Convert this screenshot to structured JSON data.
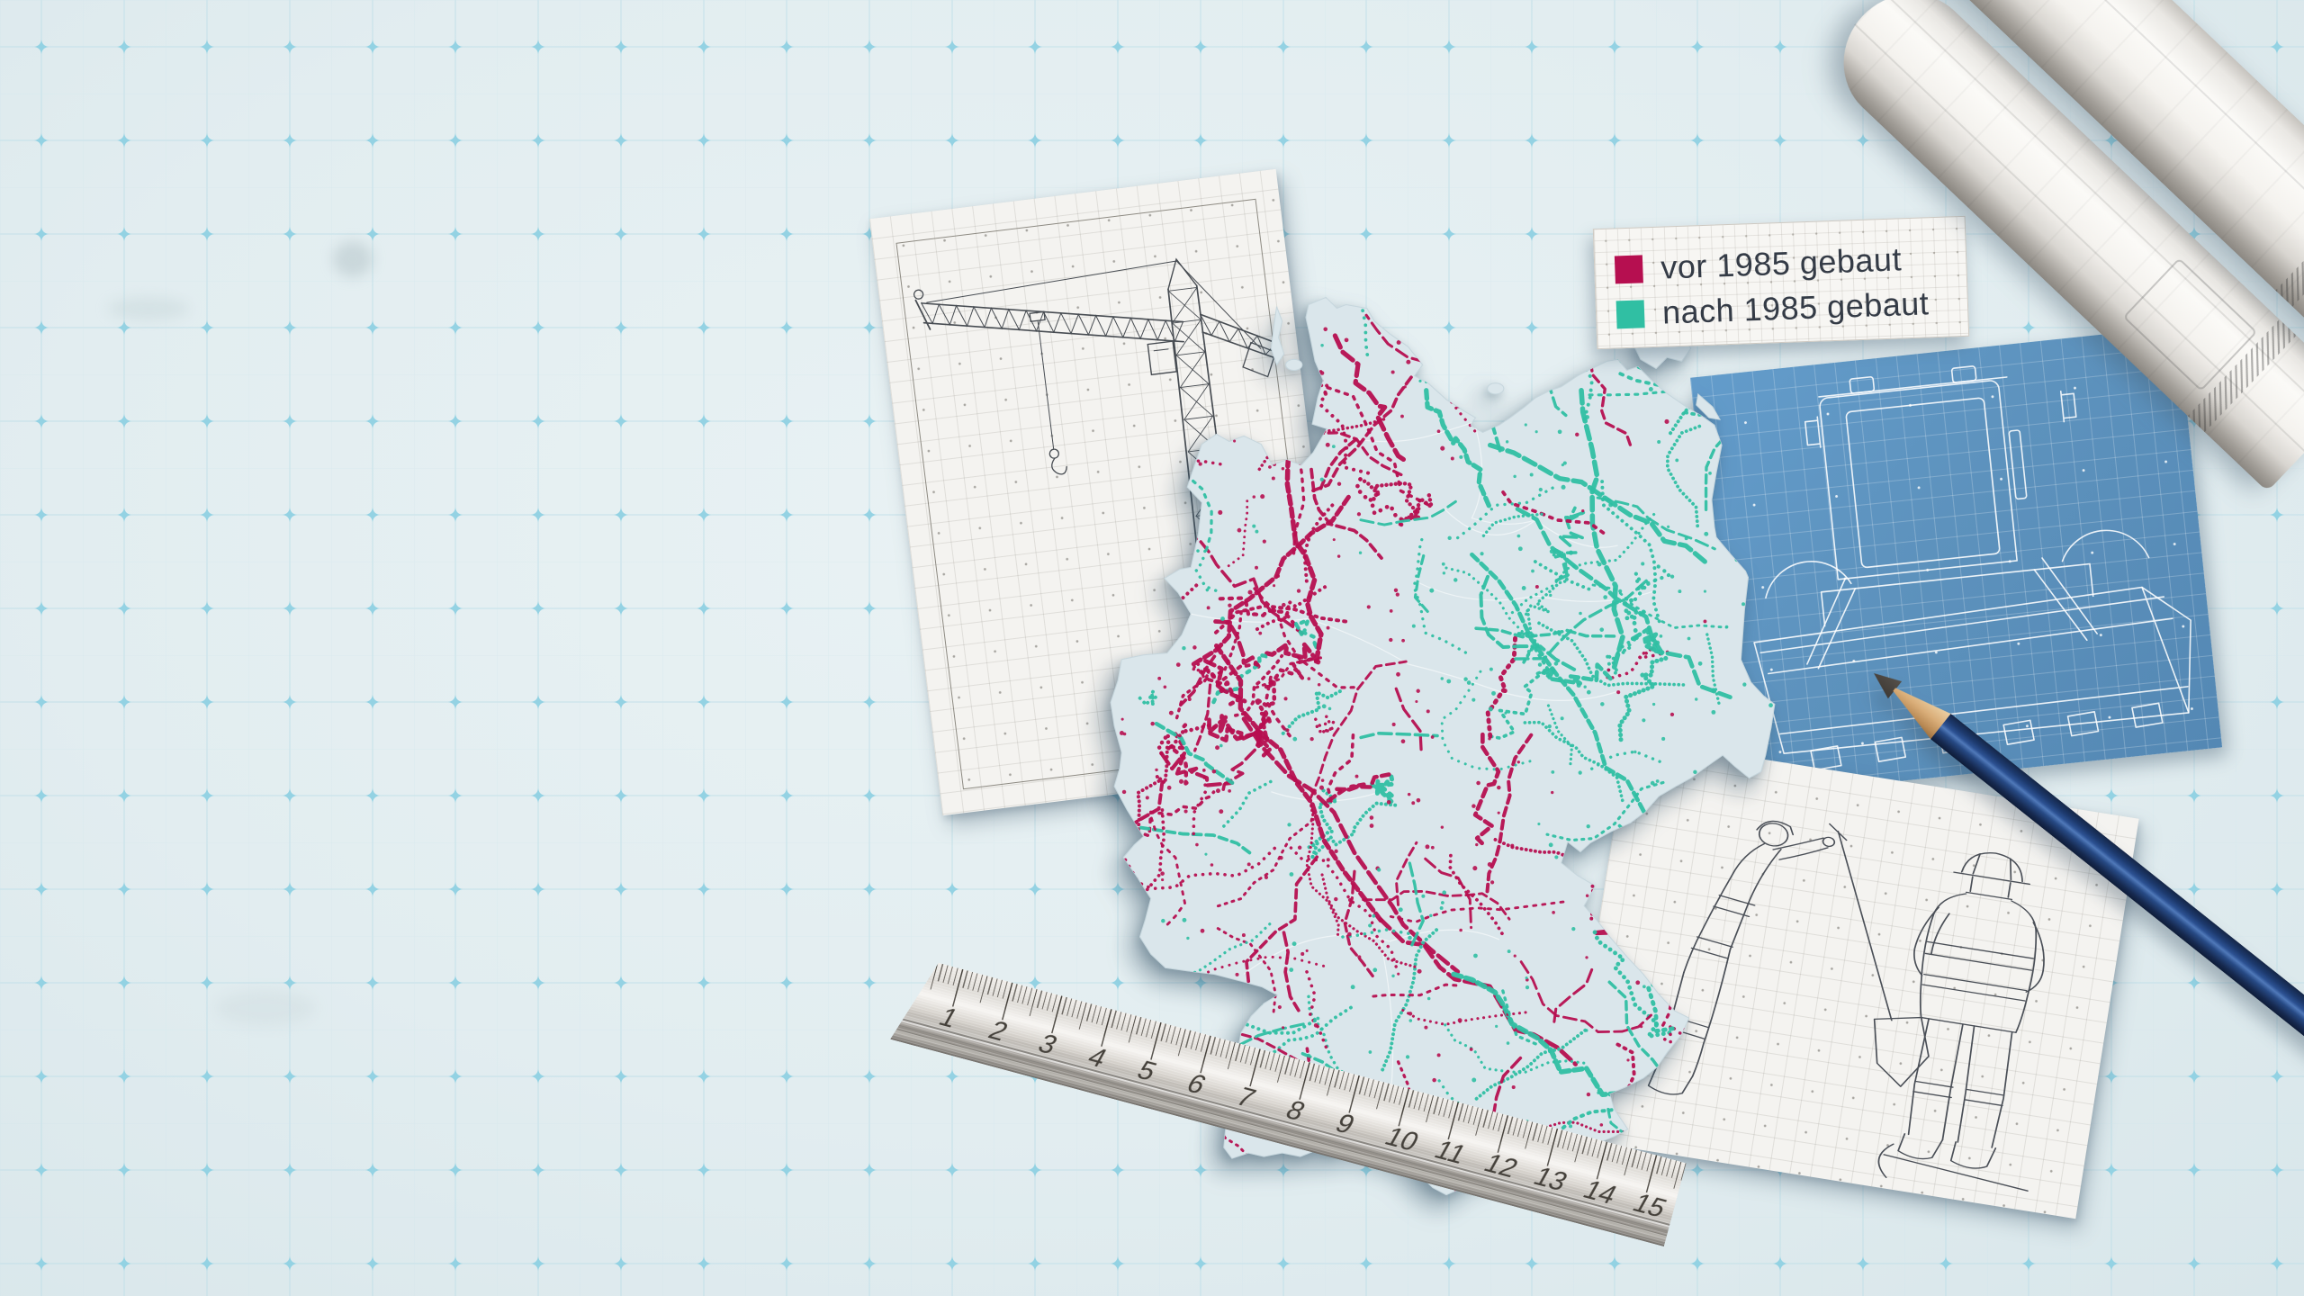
{
  "legend": {
    "items": [
      {
        "label": "vor 1985 gebaut",
        "color": "#b60f50"
      },
      {
        "label": "nach 1985 gebaut",
        "color": "#30bfa3"
      }
    ]
  },
  "ruler": {
    "unit_numbers": [
      1,
      2,
      3,
      4,
      5,
      6,
      7,
      8,
      9,
      10,
      11,
      12,
      13,
      14,
      15
    ]
  },
  "map_data": {
    "type": "map",
    "region": "Deutschland",
    "series": [
      {
        "name": "vor 1985 gebaut",
        "color": "#b60f50"
      },
      {
        "name": "nach 1985 gebaut",
        "color": "#30bfa3"
      }
    ]
  },
  "colors": {
    "background": "#e2edf0",
    "grid_line": "#bcdde8",
    "grid_sparkle": "#8fd0e2",
    "map_fill": "#dae6eb",
    "blueprint_blue": "#5d92bd",
    "paper_white": "#f4f3f0",
    "pencil_blue": "#1d3a6e",
    "ruler_metal": "#d6d2cc"
  }
}
